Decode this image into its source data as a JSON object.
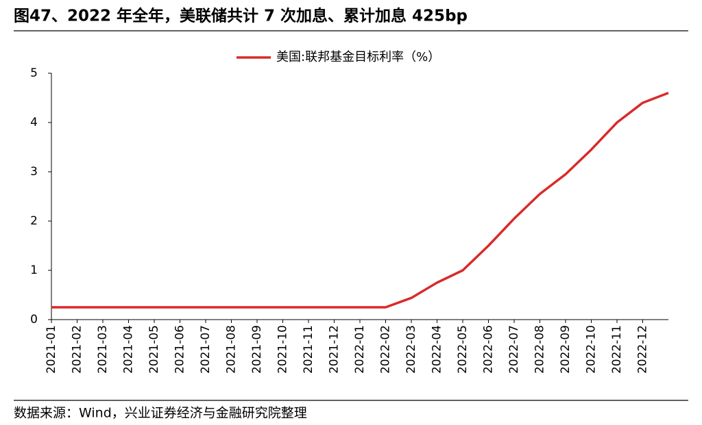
{
  "chart_data": {
    "type": "line",
    "title": "图47、2022 年全年，美联储共计 7 次加息、累计加息 425bp",
    "source": "数据来源：Wind，兴业证券经济与金融研究院整理",
    "categories": [
      "2021-01",
      "2021-02",
      "2021-03",
      "2021-04",
      "2021-05",
      "2021-06",
      "2021-07",
      "2021-08",
      "2021-09",
      "2021-10",
      "2021-11",
      "2021-12",
      "2022-01",
      "2022-02",
      "2022-03",
      "2022-04",
      "2022-05",
      "2022-06",
      "2022-07",
      "2022-08",
      "2022-09",
      "2022-10",
      "2022-11",
      "2022-12",
      null
    ],
    "series": [
      {
        "name": "美国:联邦基金目标利率（%）",
        "color": "#d92a2a",
        "values": [
          0.25,
          0.25,
          0.25,
          0.25,
          0.25,
          0.25,
          0.25,
          0.25,
          0.25,
          0.25,
          0.25,
          0.25,
          0.25,
          0.25,
          0.44,
          0.75,
          1.0,
          1.5,
          2.05,
          2.55,
          2.95,
          3.45,
          4.0,
          4.4,
          4.6
        ]
      }
    ],
    "ylim": [
      0,
      5
    ],
    "yticks": [
      0,
      1,
      2,
      3,
      4,
      5
    ],
    "grid": false,
    "legend": "top"
  }
}
